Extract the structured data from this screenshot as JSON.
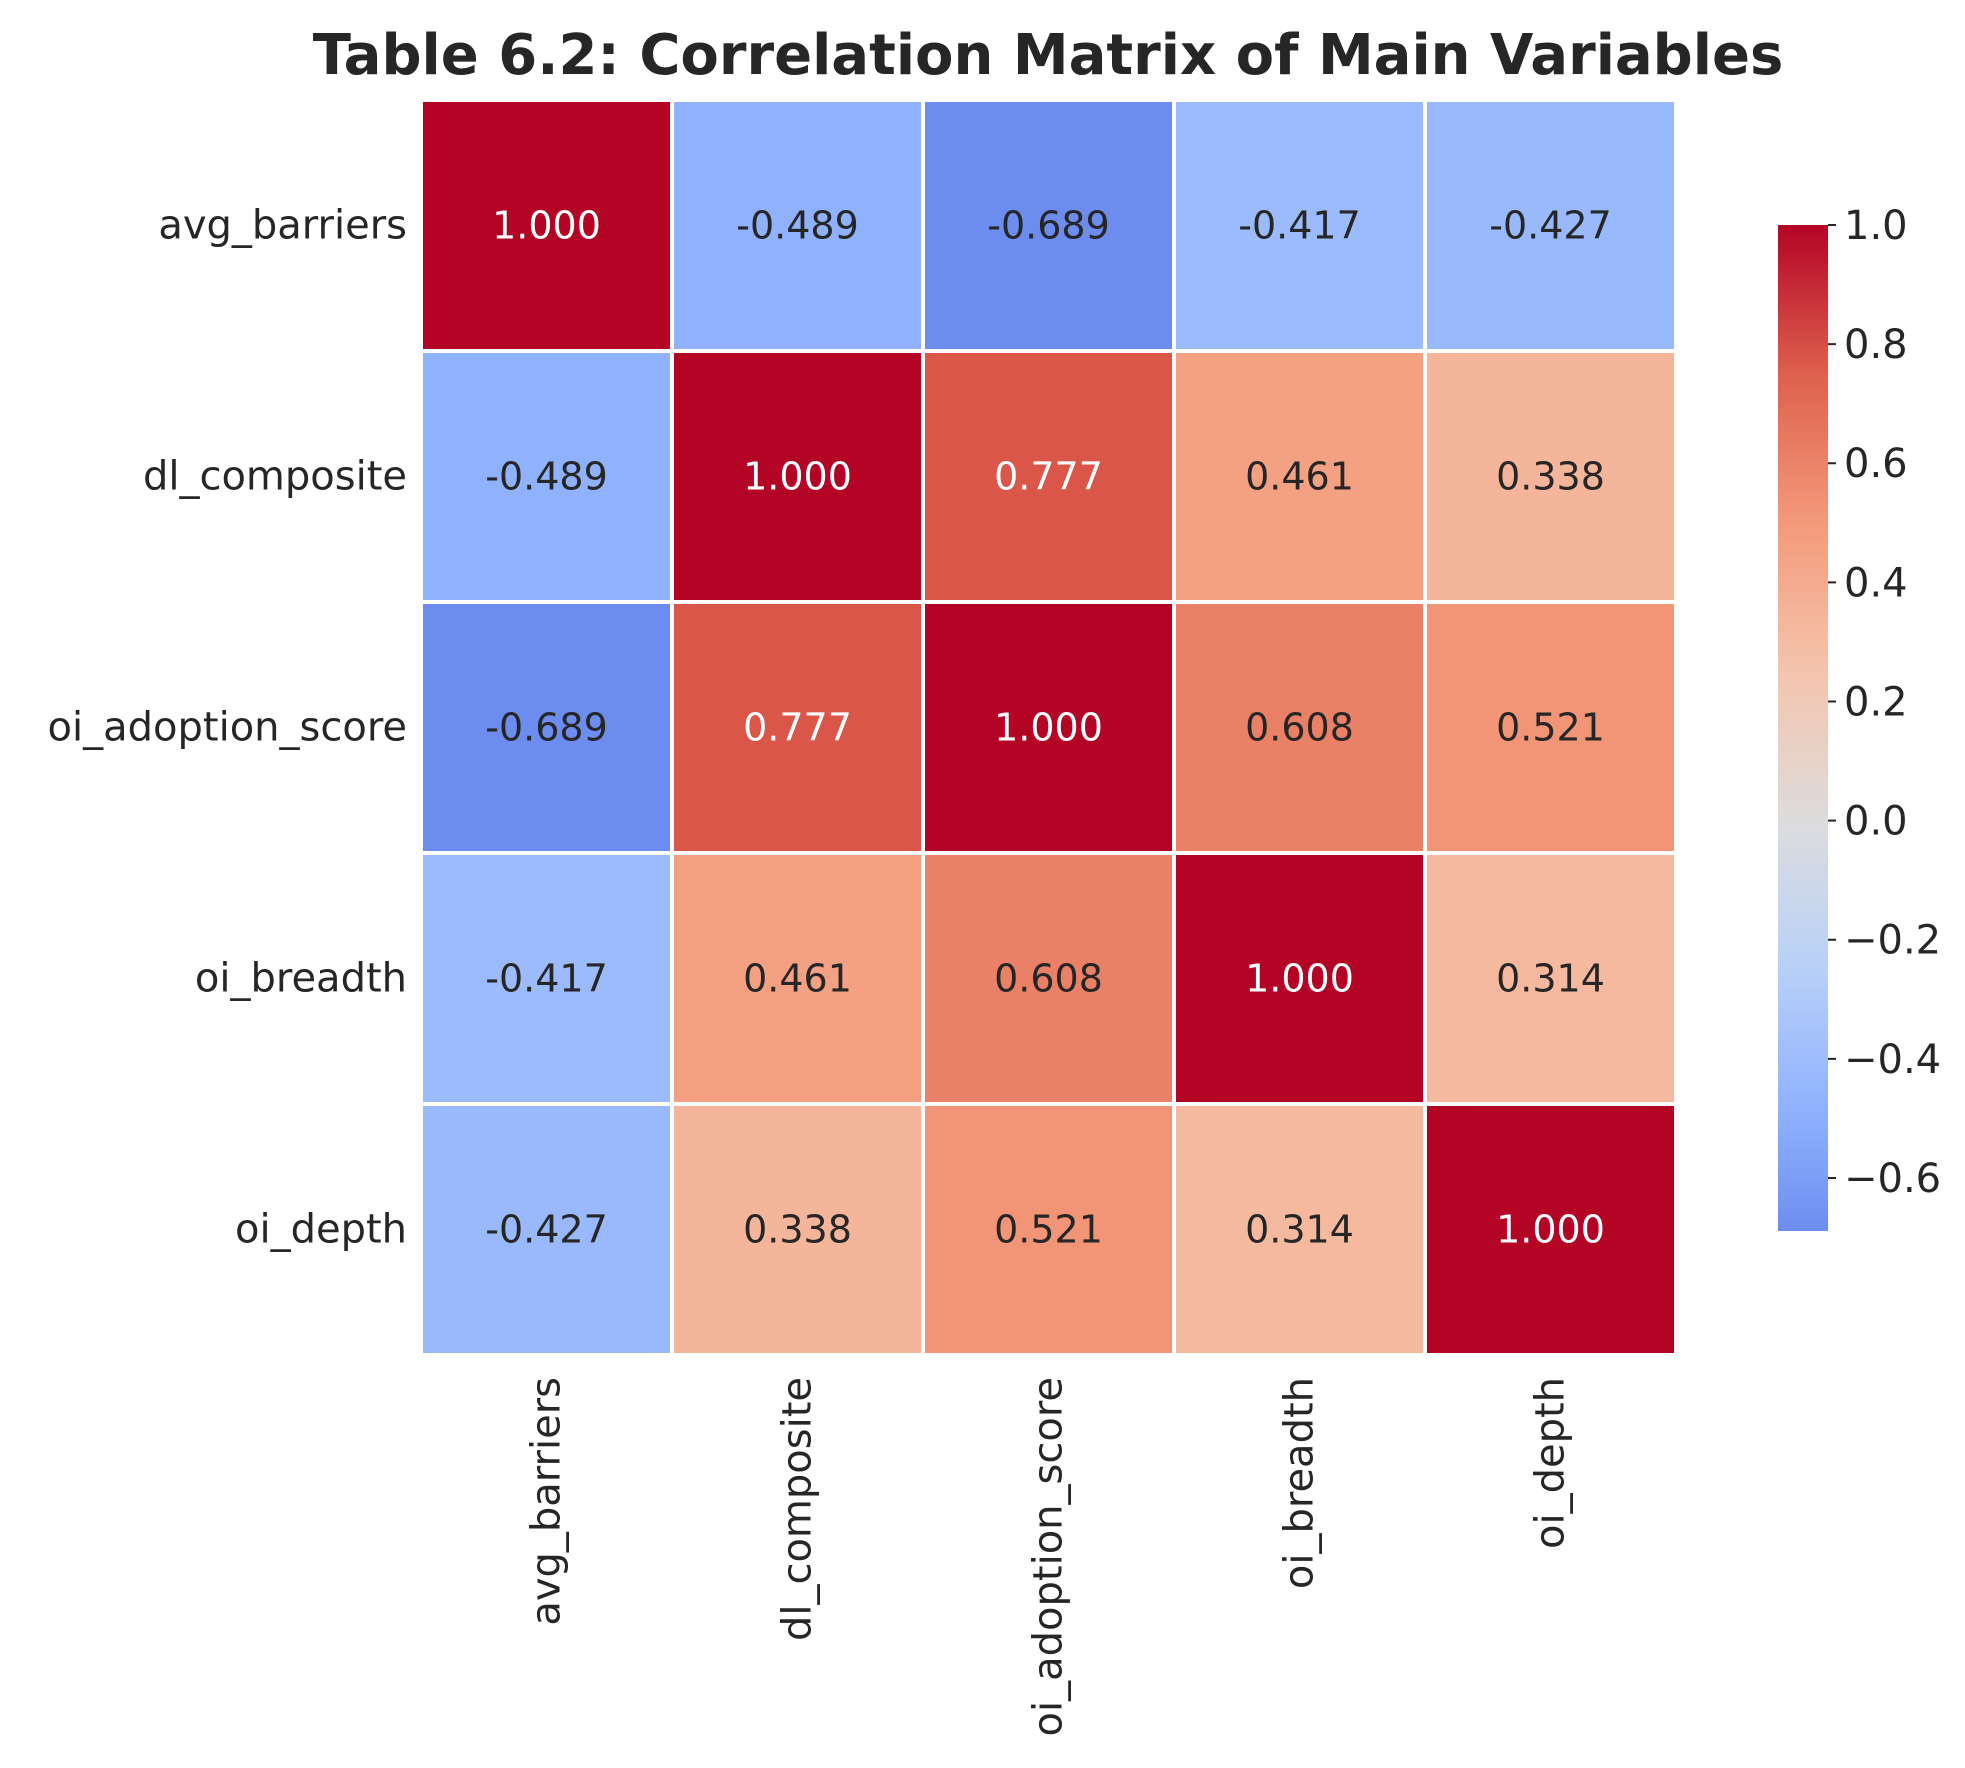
{
  "chart_data": {
    "type": "heatmap",
    "title": "Table 6.2: Correlation Matrix of Main Variables",
    "row_labels": [
      "avg_barriers",
      "dl_composite",
      "oi_adoption_score",
      "oi_breadth",
      "oi_depth"
    ],
    "col_labels": [
      "avg_barriers",
      "dl_composite",
      "oi_adoption_score",
      "oi_breadth",
      "oi_depth"
    ],
    "values": [
      [
        1.0,
        -0.489,
        -0.689,
        -0.417,
        -0.427
      ],
      [
        -0.489,
        1.0,
        0.777,
        0.461,
        0.338
      ],
      [
        -0.689,
        0.777,
        1.0,
        0.608,
        0.521
      ],
      [
        -0.417,
        0.461,
        0.608,
        1.0,
        0.314
      ],
      [
        -0.427,
        0.338,
        0.521,
        0.314,
        1.0
      ]
    ],
    "value_labels": [
      [
        "1.000",
        "-0.489",
        "-0.689",
        "-0.417",
        "-0.427"
      ],
      [
        "-0.489",
        "1.000",
        "0.777",
        "0.461",
        "0.338"
      ],
      [
        "-0.689",
        "0.777",
        "1.000",
        "0.608",
        "0.521"
      ],
      [
        "-0.417",
        "0.461",
        "0.608",
        "1.000",
        "0.314"
      ],
      [
        "-0.427",
        "0.338",
        "0.521",
        "0.314",
        "1.000"
      ]
    ],
    "colormap": "coolwarm",
    "center": 0,
    "vmin": -0.689,
    "vmax": 1.0,
    "colorbar": {
      "ticks": [
        1.0,
        0.8,
        0.6,
        0.4,
        0.2,
        0.0,
        -0.2,
        -0.4,
        -0.6
      ],
      "tick_labels": [
        "1.0",
        "0.8",
        "0.6",
        "0.4",
        "0.2",
        "0.0",
        "−0.2",
        "−0.4",
        "−0.6"
      ]
    },
    "grid": false,
    "cell_border_color": "#ffffff"
  }
}
